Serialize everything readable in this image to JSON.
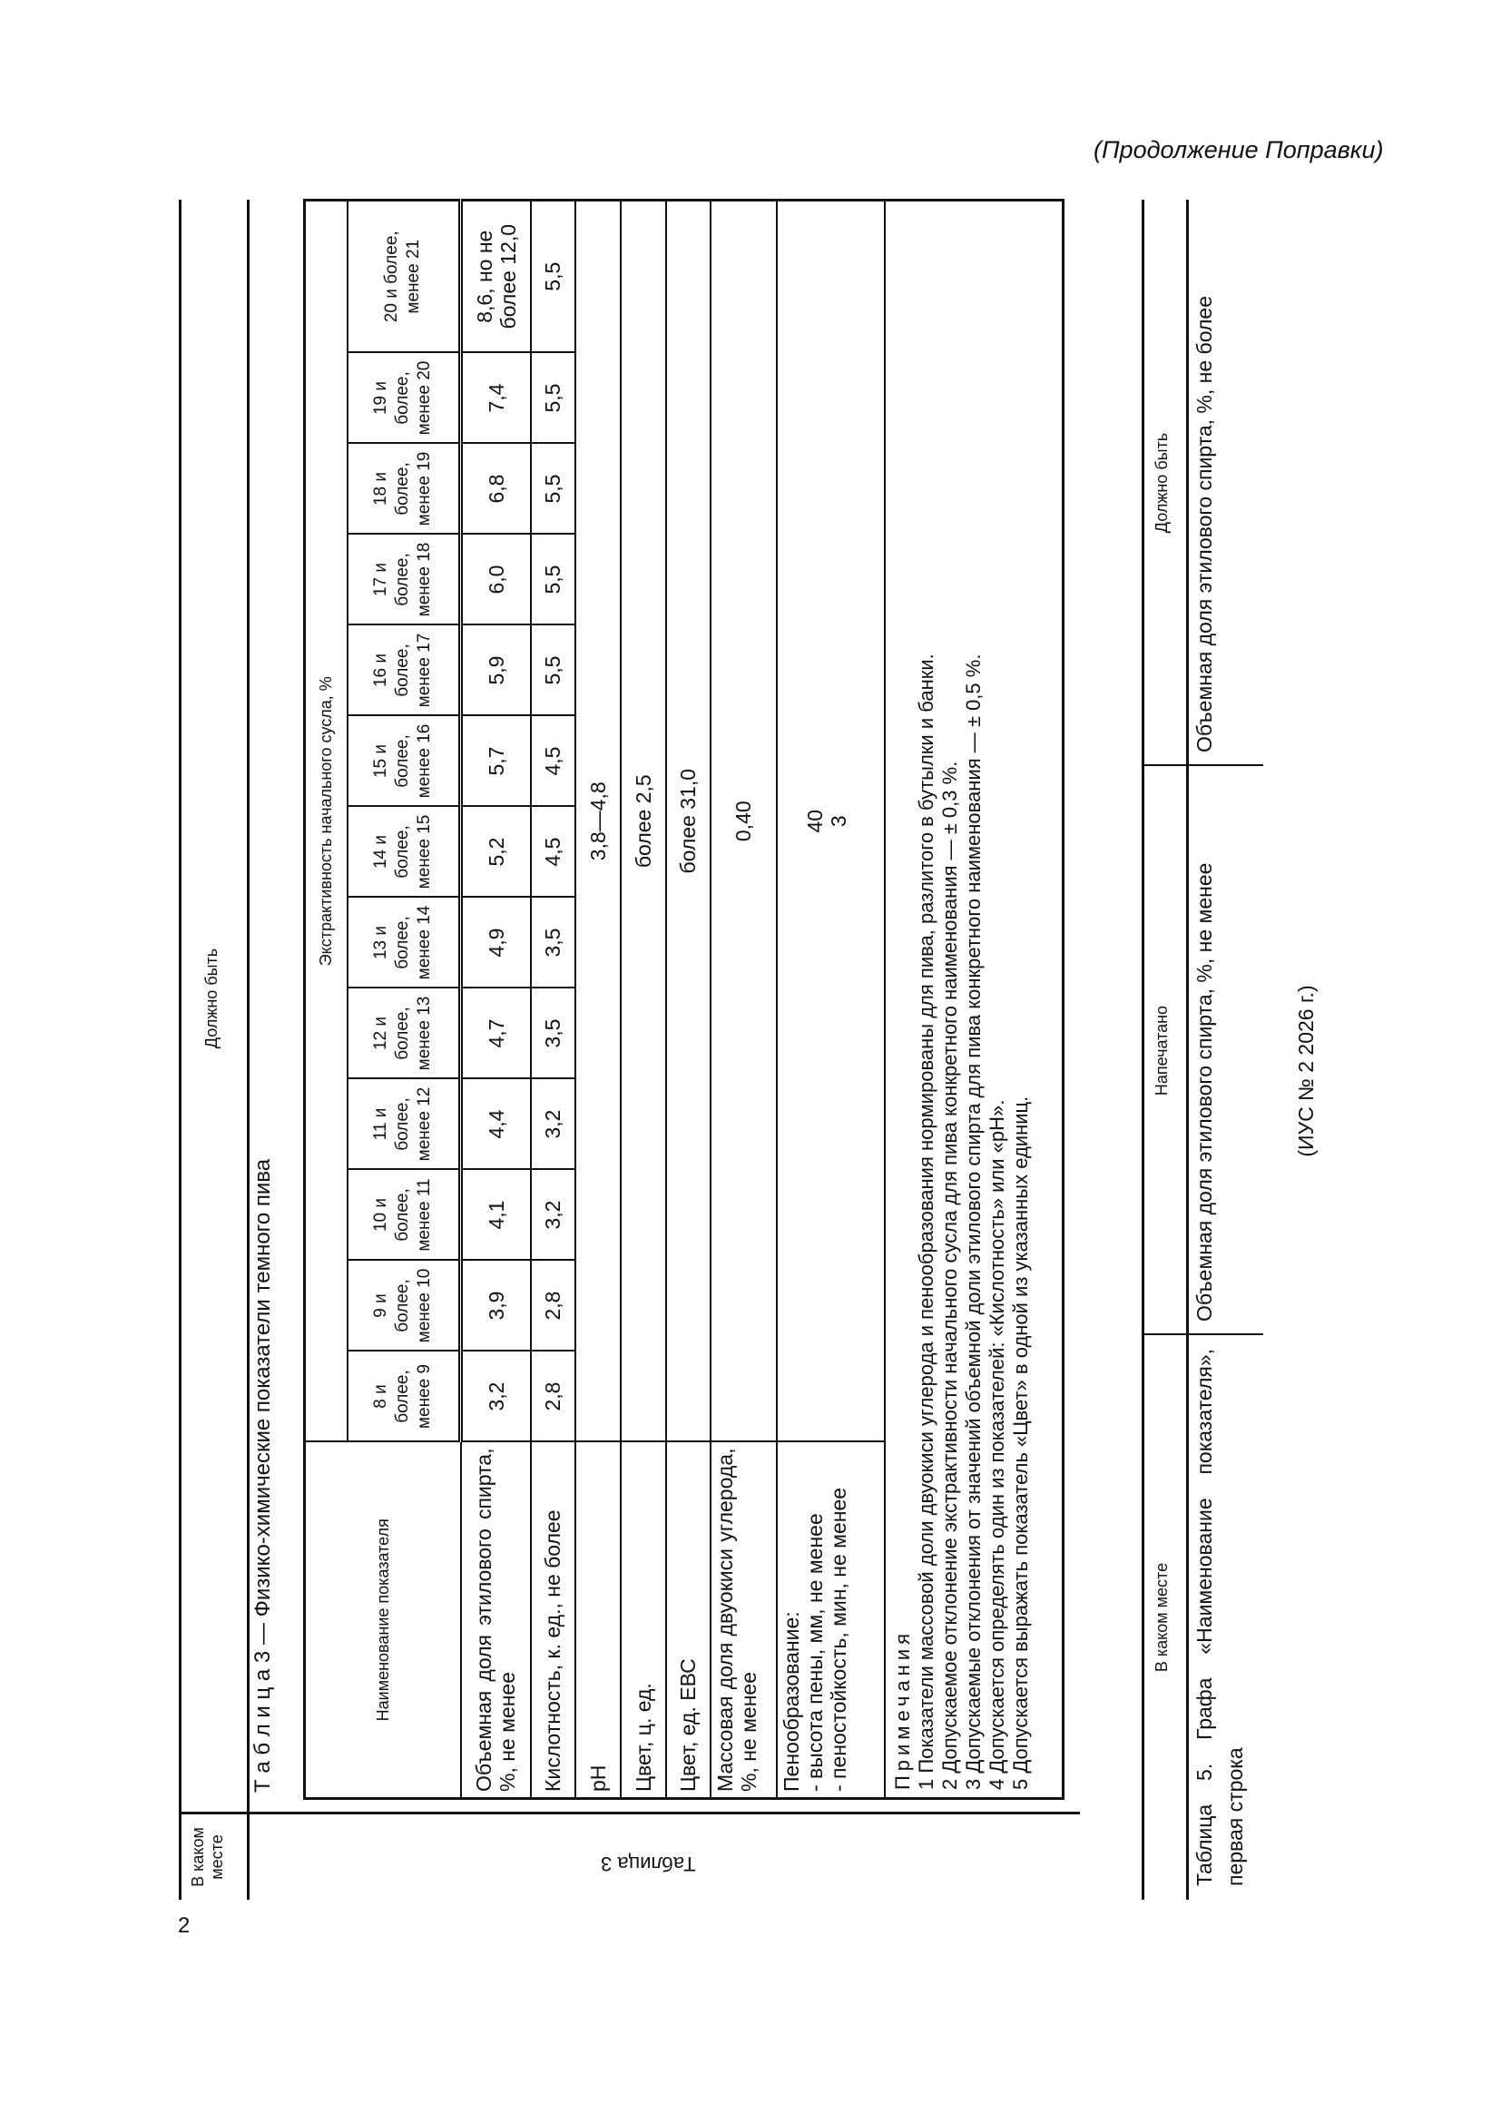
{
  "header": {
    "continuation": "(Продолжение Поправки)",
    "page_number": "2"
  },
  "frame": {
    "where_label": "В каком месте",
    "should_be_label": "Должно быть",
    "where_value": "Таблица 3"
  },
  "table3": {
    "title": "Т а б л и ц а  3 — Физико-химические показатели темного пива",
    "name_header": "Наименование показателя",
    "group_header": "Экстрактивность начального сусла, %",
    "columns": [
      "8 и более, менее 9",
      "9 и более, менее 10",
      "10 и более, менее 11",
      "11 и более, менее 12",
      "12 и более, менее 13",
      "13 и более, менее 14",
      "14 и более, менее 15",
      "15 и более, менее 16",
      "16 и более, менее 17",
      "17 и более, менее 18",
      "18 и более, менее 19",
      "19 и более, менее 20",
      "20 и более, менее 21"
    ],
    "rows": [
      {
        "name": "Объемная доля этилового спирта, %, не менее",
        "values": [
          "3,2",
          "3,9",
          "4,1",
          "4,4",
          "4,7",
          "4,9",
          "5,2",
          "5,7",
          "5,9",
          "6,0",
          "6,8",
          "7,4",
          "8,6, но не более 12,0"
        ]
      },
      {
        "name": "Кислотность, к. ед., не более",
        "values": [
          "2,8",
          "2,8",
          "3,2",
          "3,2",
          "3,5",
          "3,5",
          "4,5",
          "4,5",
          "5,5",
          "5,5",
          "5,5",
          "5,5",
          "5,5"
        ]
      },
      {
        "name": "pH",
        "merged": "3,8—4,8"
      },
      {
        "name": "Цвет, ц. ед.",
        "merged": "более 2,5"
      },
      {
        "name": "Цвет, ед. ЕВС",
        "merged": "более 31,0"
      },
      {
        "name": "Массовая доля двуокиси углерода, %, не менее",
        "merged": "0,40"
      }
    ],
    "foam": {
      "name": "Пенообразование:",
      "sub": [
        "- высота пены, мм, не менее",
        "- пеностойкость, мин, не менее"
      ],
      "values": [
        "40",
        "3"
      ]
    },
    "notes_title": "Примечания",
    "notes": [
      "1 Показатели массовой доли двуокиси углерода и пенообразования нормированы для пива, разлитого в бутылки и банки.",
      "2 Допускаемое отклонение экстрактивности начального сусла для пива конкретного наименования — ± 0,3 %.",
      "3 Допускаемые отклонения от значений объемной доли этилового спирта для пива конкретного наименования — ± 0,5 %.",
      "4 Допускается определять один из показателей: «Кислотность» или «pH».",
      "5 Допускается выражать показатель «Цвет» в одной из указанных единиц."
    ]
  },
  "table5": {
    "headers": [
      "В каком месте",
      "Напечатано",
      "Должно быть"
    ],
    "where": "Таблица 5. Графа «Наименование показателя», первая строка",
    "printed": "Объемная доля этилового спирта, %, не менее",
    "should_be": "Объемная доля этилового спирта, %, не более"
  },
  "footer": {
    "issue": "(ИУС № 2 2026 г.)"
  }
}
